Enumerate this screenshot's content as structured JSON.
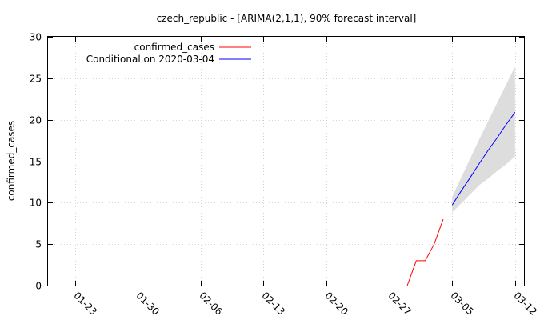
{
  "chart_data": {
    "type": "line",
    "title": "czech_republic -  [ARIMA(2,1,1), 90% forecast interval]",
    "xlabel": "",
    "ylabel": "confirmed_cases",
    "x_tick_labels": [
      "01-23",
      "01-30",
      "02-06",
      "02-13",
      "02-20",
      "02-27",
      "03-05",
      "03-12"
    ],
    "x_ticks": [
      "2020-01-23",
      "2020-01-30",
      "2020-02-06",
      "2020-02-13",
      "2020-02-20",
      "2020-02-27",
      "2020-03-05",
      "2020-03-12"
    ],
    "xlim": [
      "2020-01-20",
      "2020-03-13"
    ],
    "y_ticks": [
      0,
      5,
      10,
      15,
      20,
      25,
      30
    ],
    "ylim": [
      0,
      30
    ],
    "grid": true,
    "legend_position": "top-left",
    "series": [
      {
        "name": "confirmed_cases",
        "color": "#ff0000",
        "x": [
          "2020-02-29",
          "2020-03-01",
          "2020-03-02",
          "2020-03-03",
          "2020-03-04"
        ],
        "values": [
          0,
          3,
          3,
          5,
          8
        ]
      },
      {
        "name": "Conditional on 2020-03-04",
        "color": "#0000ff",
        "x": [
          "2020-03-05",
          "2020-03-06",
          "2020-03-07",
          "2020-03-08",
          "2020-03-09",
          "2020-03-10",
          "2020-03-11",
          "2020-03-12"
        ],
        "values": [
          9.7,
          11.4,
          13.0,
          14.7,
          16.3,
          17.8,
          19.4,
          20.9
        ]
      }
    ],
    "forecast_interval": {
      "color": "#dddddd",
      "x": [
        "2020-03-05",
        "2020-03-06",
        "2020-03-07",
        "2020-03-08",
        "2020-03-09",
        "2020-03-10",
        "2020-03-11",
        "2020-03-12"
      ],
      "lower": [
        8.8,
        9.9,
        11.0,
        12.1,
        12.9,
        13.8,
        14.6,
        15.6
      ],
      "upper": [
        10.7,
        13.0,
        15.3,
        17.6,
        19.8,
        22.0,
        24.2,
        26.4
      ]
    }
  }
}
